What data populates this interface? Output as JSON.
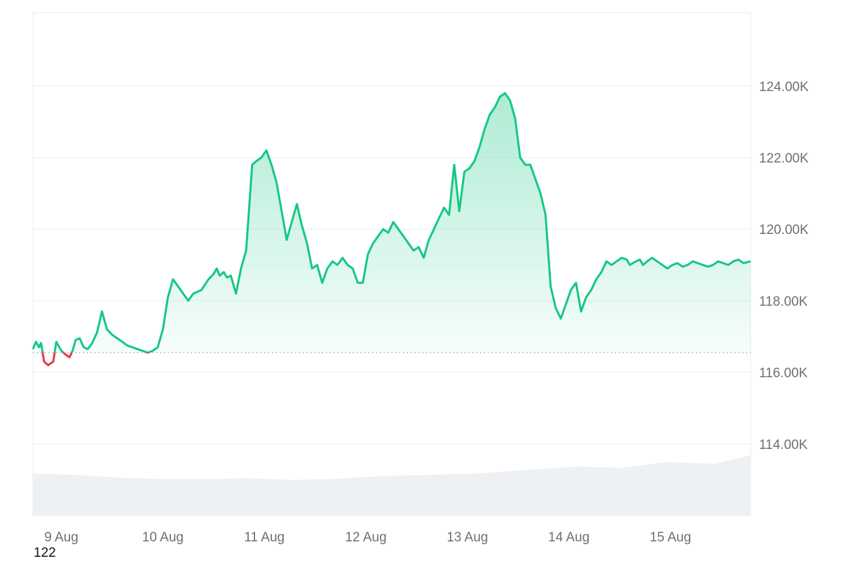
{
  "corner_label": "122",
  "chart_data": {
    "type": "area",
    "title": "",
    "xlabel": "",
    "ylabel": "",
    "x_tick_labels": [
      "9 Aug",
      "10 Aug",
      "11 Aug",
      "12 Aug",
      "13 Aug",
      "14 Aug",
      "15 Aug"
    ],
    "y_tick_values": [
      114000,
      116000,
      118000,
      120000,
      122000,
      124000
    ],
    "y_tick_labels": [
      "114.00K",
      "116.00K",
      "118.00K",
      "120.00K",
      "122.00K",
      "124.00K"
    ],
    "ylim": [
      112000,
      126050
    ],
    "xlim_days_from_9_aug": [
      -0.28,
      6.79
    ],
    "baseline_value": 116550,
    "grid": true,
    "legend": "none",
    "colors": {
      "up": "#16c784",
      "down": "#ea3943",
      "grid": "#eceef2",
      "volume": "#eef1f4",
      "axis_text": "#6b6f76"
    },
    "series": [
      {
        "x": [
          -0.28,
          -0.25,
          -0.22,
          -0.2,
          -0.17,
          -0.13,
          -0.08,
          -0.05,
          -0.03,
          0,
          0.04,
          0.08,
          0.11,
          0.14,
          0.18,
          0.22,
          0.26,
          0.3,
          0.35,
          0.4,
          0.45,
          0.5,
          0.55,
          0.6,
          0.65,
          0.7,
          0.75,
          0.8,
          0.85,
          0.9,
          0.95,
          1,
          1.05,
          1.1,
          1.15,
          1.2,
          1.25,
          1.3,
          1.38,
          1.45,
          1.5,
          1.53,
          1.56,
          1.6,
          1.63,
          1.67,
          1.72,
          1.77,
          1.82,
          1.88,
          1.92,
          1.97,
          2.02,
          2.07,
          2.12,
          2.17,
          2.22,
          2.27,
          2.32,
          2.37,
          2.42,
          2.47,
          2.52,
          2.57,
          2.62,
          2.67,
          2.72,
          2.77,
          2.82,
          2.87,
          2.92,
          2.97,
          3.02,
          3.07,
          3.12,
          3.17,
          3.22,
          3.27,
          3.32,
          3.37,
          3.42,
          3.47,
          3.52,
          3.57,
          3.62,
          3.67,
          3.72,
          3.77,
          3.82,
          3.87,
          3.92,
          3.97,
          4.02,
          4.07,
          4.12,
          4.17,
          4.22,
          4.27,
          4.32,
          4.37,
          4.42,
          4.47,
          4.52,
          4.57,
          4.62,
          4.67,
          4.72,
          4.77,
          4.82,
          4.87,
          4.92,
          4.97,
          5.02,
          5.07,
          5.12,
          5.17,
          5.22,
          5.27,
          5.32,
          5.37,
          5.42,
          5.47,
          5.52,
          5.57,
          5.6,
          5.63,
          5.66,
          5.7,
          5.73,
          5.77,
          5.82,
          5.87,
          5.92,
          5.97,
          6.02,
          6.07,
          6.12,
          6.17,
          6.22,
          6.27,
          6.32,
          6.37,
          6.42,
          6.47,
          6.52,
          6.57,
          6.62,
          6.67,
          6.72,
          6.79
        ],
        "y": [
          116650,
          116850,
          116700,
          116820,
          116300,
          116200,
          116300,
          116850,
          116750,
          116600,
          116500,
          116420,
          116600,
          116900,
          116950,
          116700,
          116650,
          116800,
          117100,
          117700,
          117200,
          117050,
          116950,
          116850,
          116750,
          116700,
          116650,
          116600,
          116550,
          116600,
          116700,
          117200,
          118100,
          118600,
          118400,
          118200,
          118000,
          118200,
          118300,
          118600,
          118750,
          118900,
          118700,
          118800,
          118650,
          118700,
          118200,
          118900,
          119400,
          121800,
          121900,
          122000,
          122200,
          121800,
          121300,
          120500,
          119700,
          120200,
          120700,
          120100,
          119600,
          118900,
          119000,
          118500,
          118900,
          119100,
          119000,
          119200,
          119000,
          118900,
          118500,
          118500,
          119300,
          119600,
          119800,
          120000,
          119900,
          120200,
          120000,
          119800,
          119600,
          119400,
          119500,
          119200,
          119700,
          120000,
          120300,
          120600,
          120400,
          121800,
          120500,
          121600,
          121700,
          121900,
          122300,
          122800,
          123200,
          123400,
          123700,
          123800,
          123600,
          123100,
          122000,
          121800,
          121800,
          121400,
          121000,
          120400,
          118400,
          117800,
          117500,
          117900,
          118300,
          118500,
          117700,
          118100,
          118300,
          118600,
          118800,
          119100,
          119000,
          119100,
          119200,
          119150,
          119000,
          119050,
          119100,
          119150,
          119000,
          119100,
          119200,
          119100,
          119000,
          118900,
          119000,
          119050,
          118950,
          119000,
          119100,
          119050,
          119000,
          118950,
          119000,
          119100,
          119050,
          119000,
          119100,
          119150,
          119050,
          119100
        ]
      }
    ]
  }
}
